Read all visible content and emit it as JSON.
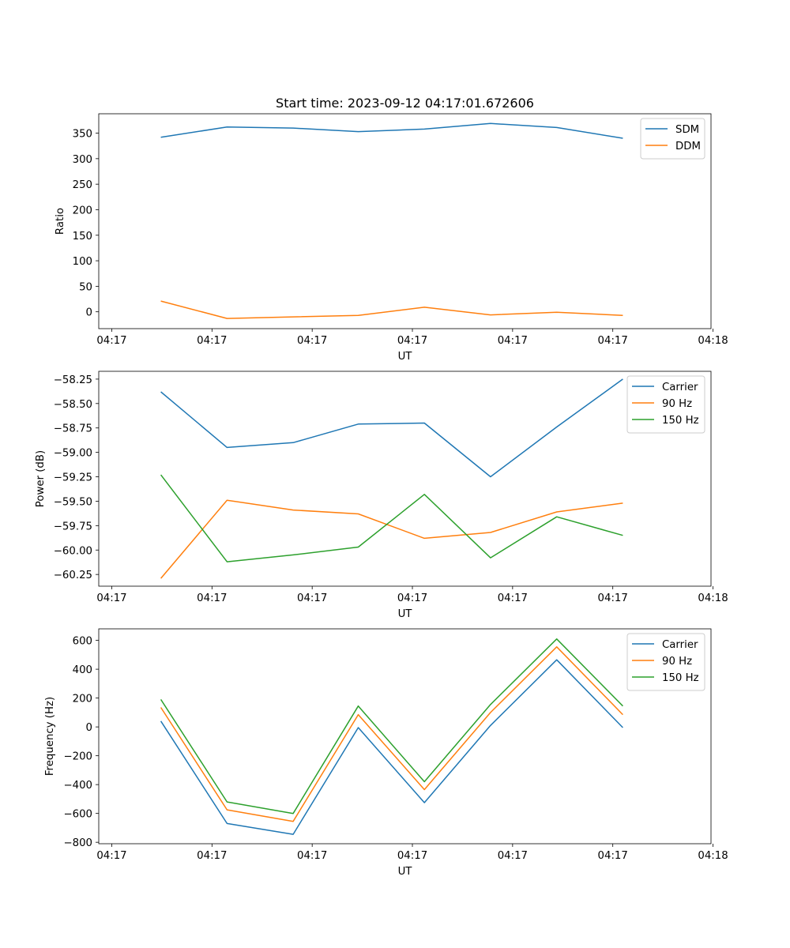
{
  "chart_data": [
    {
      "type": "line",
      "title": "Start time: 2023-09-12 04:17:01.672606",
      "xlabel": "UT",
      "ylabel": "Ratio",
      "xtick_labels": [
        "04:17",
        "04:17",
        "04:17",
        "04:17",
        "04:17",
        "04:17",
        "04:18"
      ],
      "xtick_values": [
        0,
        1,
        2,
        3,
        4,
        5,
        6
      ],
      "xlim": [
        -0.13,
        5.98
      ],
      "ylim": [
        -33,
        388
      ],
      "yticks": [
        0,
        50,
        100,
        150,
        200,
        250,
        300,
        350
      ],
      "ytick_labels": [
        "0",
        "50",
        "100",
        "150",
        "200",
        "250",
        "300",
        "350"
      ],
      "legend_position": "top-right",
      "x": [
        0.49,
        1.15,
        1.81,
        2.46,
        3.12,
        3.78,
        4.44,
        5.1
      ],
      "series": [
        {
          "name": "SDM",
          "color": "#1f77b4",
          "values": [
            342,
            362,
            360,
            353,
            358,
            369,
            361,
            340
          ]
        },
        {
          "name": "DDM",
          "color": "#ff7f0e",
          "values": [
            21,
            -13,
            -10,
            -7,
            9,
            -6,
            -1,
            -7
          ]
        }
      ]
    },
    {
      "type": "line",
      "title": "",
      "xlabel": "UT",
      "ylabel": "Power (dB)",
      "xtick_labels": [
        "04:17",
        "04:17",
        "04:17",
        "04:17",
        "04:17",
        "04:17",
        "04:18"
      ],
      "xtick_values": [
        0,
        1,
        2,
        3,
        4,
        5,
        6
      ],
      "xlim": [
        -0.13,
        5.98
      ],
      "ylim": [
        -60.37,
        -58.17
      ],
      "yticks": [
        -60.25,
        -60.0,
        -59.75,
        -59.5,
        -59.25,
        -59.0,
        -58.75,
        -58.5,
        -58.25
      ],
      "ytick_labels": [
        "−60.25",
        "−60.00",
        "−59.75",
        "−59.50",
        "−59.25",
        "−59.00",
        "−58.75",
        "−58.50",
        "−58.25"
      ],
      "legend_position": "top-right",
      "x": [
        0.49,
        1.15,
        1.81,
        2.46,
        3.12,
        3.78,
        4.44,
        5.1
      ],
      "series": [
        {
          "name": "Carrier",
          "color": "#1f77b4",
          "values": [
            -58.38,
            -58.95,
            -58.9,
            -58.71,
            -58.7,
            -59.25,
            -58.74,
            -58.25
          ]
        },
        {
          "name": "90 Hz",
          "color": "#ff7f0e",
          "values": [
            -60.29,
            -59.49,
            -59.59,
            -59.63,
            -59.88,
            -59.82,
            -59.61,
            -59.52
          ]
        },
        {
          "name": "150 Hz",
          "color": "#2ca02c",
          "values": [
            -59.23,
            -60.12,
            -60.05,
            -59.97,
            -59.43,
            -60.08,
            -59.66,
            -59.85
          ]
        }
      ]
    },
    {
      "type": "line",
      "title": "",
      "xlabel": "UT",
      "ylabel": "Frequency (Hz)",
      "xtick_labels": [
        "04:17",
        "04:17",
        "04:17",
        "04:17",
        "04:17",
        "04:17",
        "04:18"
      ],
      "xtick_values": [
        0,
        1,
        2,
        3,
        4,
        5,
        6
      ],
      "xlim": [
        -0.13,
        5.98
      ],
      "ylim": [
        -810,
        680
      ],
      "yticks": [
        -800,
        -600,
        -400,
        -200,
        0,
        200,
        400,
        600
      ],
      "ytick_labels": [
        "−800",
        "−600",
        "−400",
        "−200",
        "0",
        "200",
        "400",
        "600"
      ],
      "legend_position": "top-right",
      "x": [
        0.49,
        1.15,
        1.81,
        2.46,
        3.12,
        3.78,
        4.44,
        5.1
      ],
      "series": [
        {
          "name": "Carrier",
          "color": "#1f77b4",
          "values": [
            40,
            -670,
            -745,
            -5,
            -525,
            10,
            465,
            -5
          ]
        },
        {
          "name": "90 Hz",
          "color": "#ff7f0e",
          "values": [
            135,
            -575,
            -655,
            85,
            -435,
            100,
            555,
            85
          ]
        },
        {
          "name": "150 Hz",
          "color": "#2ca02c",
          "values": [
            190,
            -520,
            -600,
            145,
            -380,
            155,
            610,
            145
          ]
        }
      ]
    }
  ]
}
